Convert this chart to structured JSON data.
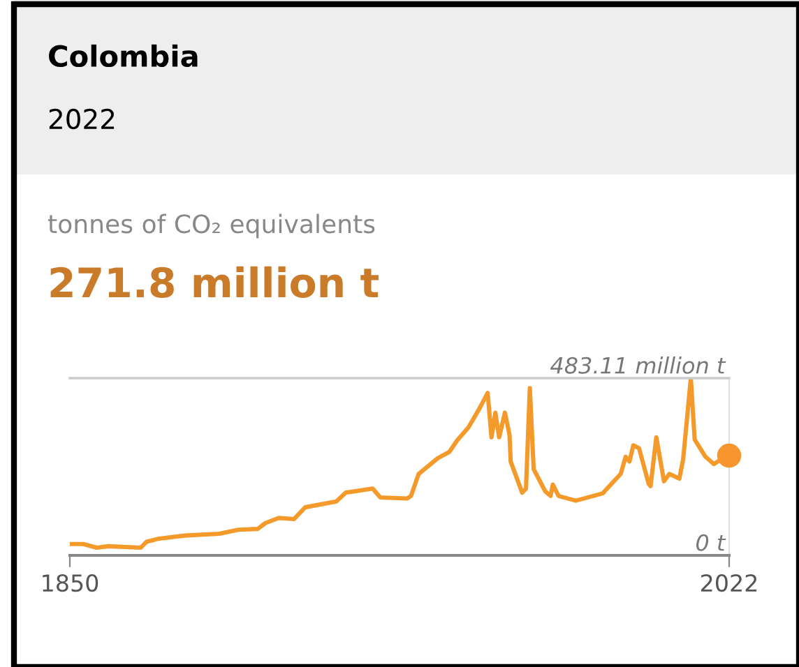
{
  "chart_data": {
    "type": "line",
    "title": "Colombia",
    "subtitle": "2022",
    "annotations": [
      "tonnes of CO₂ equivalents",
      "271.8 million t"
    ],
    "xlim": [
      1850,
      2022
    ],
    "xticks": [
      1850,
      2022
    ],
    "ylim": [
      0,
      483.11
    ],
    "yticks": [
      {
        "value": 0,
        "label": "0 t"
      },
      {
        "value": 483.11,
        "label": "483.11 million t"
      }
    ],
    "legend": false,
    "series": [
      {
        "color": "#f39a2b",
        "marker": "none",
        "x": [
          1850,
          1853.5,
          1857,
          1860,
          1868.5,
          1870,
          1873,
          1880,
          1889,
          1894,
          1899,
          1901,
          1904.5,
          1908.5,
          1911.4,
          1919.5,
          1922,
          1929,
          1931,
          1938,
          1939,
          1941,
          1946,
          1949,
          1951,
          1954,
          1957,
          1959,
          1960,
          1961,
          1962,
          1963.5,
          1964.7,
          1965,
          1968,
          1969,
          1970,
          1971,
          1974,
          1975.4,
          1976,
          1977.5,
          1982,
          1989,
          1993.7,
          1995,
          1996,
          1997,
          1998.5,
          2001,
          2001.5,
          2003,
          2005,
          2006.4,
          2009,
          2010,
          2012,
          2013,
          2015.8,
          2018,
          2020,
          2022
        ],
        "values": [
          31,
          31,
          21,
          25,
          21,
          37,
          45,
          54,
          59,
          70,
          72,
          88,
          102,
          99,
          131,
          147,
          171,
          182,
          158,
          155,
          162,
          222,
          265,
          282,
          313,
          349,
          403,
          443,
          322,
          389,
          322,
          389,
          329,
          256,
          171,
          182,
          456,
          235,
          175,
          162,
          193,
          162,
          149,
          169,
          222,
          269,
          256,
          300,
          292,
          195,
          189,
          322,
          202,
          222,
          209,
          262,
          483.11,
          316,
          269,
          249,
          262,
          271.8
        ]
      },
      {
        "type": "scatter",
        "color": "#f7962f",
        "marker": "circle",
        "x": [
          2022
        ],
        "values": [
          271.8
        ]
      }
    ]
  }
}
